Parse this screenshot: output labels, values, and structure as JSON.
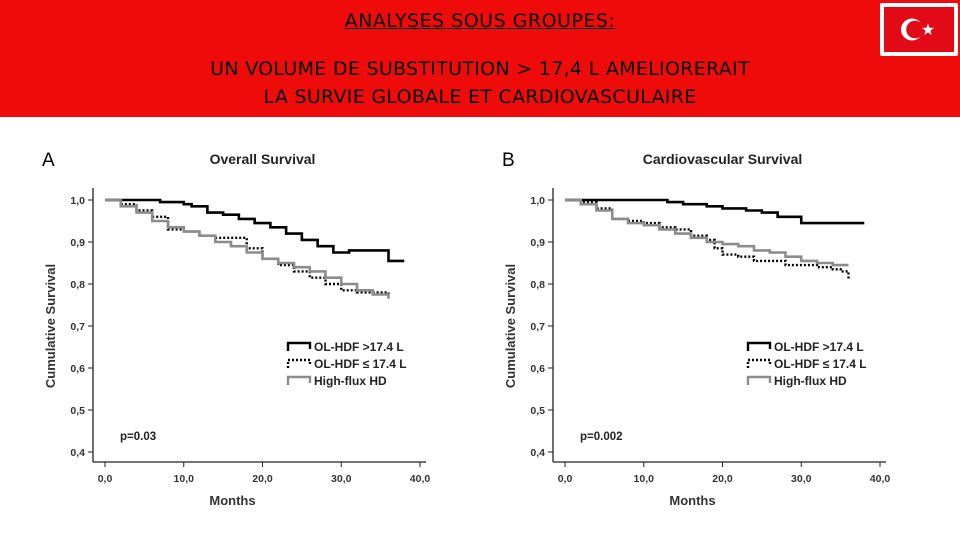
{
  "slide": {
    "heading": "ANALYSES SOUS GROUPES:",
    "subheading_line1": "UN VOLUME DE SUBSTITUTION > 17,4 L AMELIORERAIT",
    "subheading_line2": "LA SURVIE GLOBALE ET CARDIOVASCULAIRE",
    "flag_icon": "turkey-flag-icon",
    "flag_colors": {
      "field": "#e30a17",
      "symbol": "#ffffff"
    }
  },
  "chart_data": [
    {
      "type": "line",
      "panel_letter": "A",
      "title": "Overall Survival",
      "xlabel": "Months",
      "ylabel": "Cumulative Survival",
      "x_ticks": [
        "0,0",
        "10,0",
        "20,0",
        "30,0",
        "40,0"
      ],
      "y_ticks": [
        "0,4",
        "0,5",
        "0,6",
        "0,7",
        "0,8",
        "0,9",
        "1,0"
      ],
      "xlim": [
        0,
        40
      ],
      "ylim": [
        0.4,
        1.0
      ],
      "p_value": "p=0.03",
      "legend_placement": "center-right",
      "series": [
        {
          "name": "OL-HDF >17.4 L",
          "color": "#000000",
          "style": "solid",
          "x": [
            0,
            4,
            7,
            10,
            11,
            13,
            15,
            17,
            19,
            21,
            23,
            25,
            27,
            29,
            31,
            33,
            35,
            36,
            37,
            38
          ],
          "y": [
            1.0,
            1.0,
            0.995,
            0.99,
            0.985,
            0.97,
            0.965,
            0.955,
            0.945,
            0.935,
            0.92,
            0.905,
            0.89,
            0.875,
            0.88,
            0.88,
            0.88,
            0.855,
            0.855,
            0.855
          ]
        },
        {
          "name": "OL-HDF ≤ 17.4 L",
          "color": "#000000",
          "style": "dotted",
          "x": [
            0,
            2,
            4,
            6,
            8,
            10,
            12,
            14,
            16,
            18,
            20,
            22,
            24,
            26,
            28,
            30,
            32,
            34,
            36
          ],
          "y": [
            1.0,
            0.99,
            0.975,
            0.96,
            0.93,
            0.925,
            0.915,
            0.91,
            0.91,
            0.885,
            0.86,
            0.845,
            0.83,
            0.815,
            0.8,
            0.785,
            0.78,
            0.78,
            0.775
          ]
        },
        {
          "name": "High-flux HD",
          "color": "#8c8c8c",
          "style": "solid",
          "x": [
            0,
            2,
            4,
            6,
            8,
            10,
            12,
            14,
            16,
            18,
            20,
            22,
            24,
            26,
            28,
            30,
            32,
            34,
            36
          ],
          "y": [
            1.0,
            0.985,
            0.97,
            0.95,
            0.935,
            0.925,
            0.915,
            0.9,
            0.89,
            0.875,
            0.86,
            0.85,
            0.84,
            0.83,
            0.815,
            0.8,
            0.785,
            0.775,
            0.765
          ]
        }
      ]
    },
    {
      "type": "line",
      "panel_letter": "B",
      "title": "Cardiovascular Survival",
      "xlabel": "Months",
      "ylabel": "Cumulative Survival",
      "x_ticks": [
        "0,0",
        "10,0",
        "20,0",
        "30,0",
        "40,0"
      ],
      "y_ticks": [
        "0,4",
        "0,5",
        "0,6",
        "0,7",
        "0,8",
        "0,9",
        "1,0"
      ],
      "xlim": [
        0,
        40
      ],
      "ylim": [
        0.4,
        1.0
      ],
      "p_value": "p=0.002",
      "legend_placement": "center-right",
      "series": [
        {
          "name": "OL-HDF >17.4 L",
          "color": "#000000",
          "style": "solid",
          "x": [
            0,
            5,
            10,
            13,
            15,
            18,
            20,
            23,
            25,
            27,
            30,
            33,
            36,
            38
          ],
          "y": [
            1.0,
            1.0,
            1.0,
            0.995,
            0.99,
            0.985,
            0.98,
            0.975,
            0.97,
            0.96,
            0.945,
            0.945,
            0.945,
            0.945
          ]
        },
        {
          "name": "OL-HDF ≤ 17.4 L",
          "color": "#000000",
          "style": "dotted",
          "x": [
            0,
            2,
            4,
            6,
            8,
            10,
            12,
            14,
            16,
            18,
            19,
            20,
            22,
            24,
            26,
            28,
            30,
            32,
            34,
            35,
            36
          ],
          "y": [
            1.0,
            0.995,
            0.98,
            0.955,
            0.95,
            0.945,
            0.935,
            0.93,
            0.915,
            0.905,
            0.885,
            0.87,
            0.865,
            0.855,
            0.855,
            0.845,
            0.845,
            0.84,
            0.835,
            0.83,
            0.81
          ]
        },
        {
          "name": "High-flux HD",
          "color": "#8c8c8c",
          "style": "solid",
          "x": [
            0,
            2,
            4,
            6,
            8,
            10,
            12,
            14,
            16,
            18,
            20,
            22,
            24,
            26,
            28,
            30,
            32,
            34,
            36
          ],
          "y": [
            1.0,
            0.99,
            0.975,
            0.955,
            0.945,
            0.94,
            0.93,
            0.92,
            0.91,
            0.9,
            0.895,
            0.89,
            0.88,
            0.875,
            0.865,
            0.855,
            0.85,
            0.845,
            0.845
          ]
        }
      ]
    }
  ]
}
